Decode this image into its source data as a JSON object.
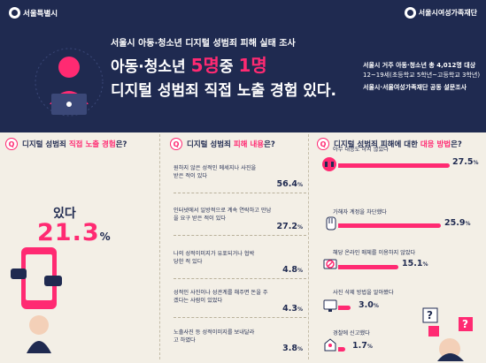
{
  "header": {
    "org_left": "서울특별시",
    "org_right": "서울시여성가족재단",
    "subtitle": "서울시 아동·청소년 디지털 성범죄 피해 실태 조사",
    "headline_pre": "아동·청소년 ",
    "headline_num1": "5명",
    "headline_mid": "중 ",
    "headline_num2": "1명",
    "headline_line2": "디지털 성범죄 직접 노출 경험 있다.",
    "info_line1": "서울시 거주 아동·청소년 총 4,012명 대상",
    "info_line2": "12~19세(초등학교 5학년~고등학교 3학년)",
    "info_line3": "서울시·서울여성가족재단 공동 설문조사"
  },
  "q1": {
    "qmark": "Q",
    "title_pre": "디지털 성범죄 ",
    "title_hl": "직접 노출 경험",
    "title_post": "은?",
    "label": "있다",
    "value": "21.3",
    "unit": "%"
  },
  "q2": {
    "qmark": "Q",
    "title_pre": "디지털 성범죄 ",
    "title_hl": "피해 내용",
    "title_post": "은?",
    "items": [
      {
        "text": "원하지 않은 성적인 메세지나 사진을 받은 적이 있다",
        "value": "56.4",
        "unit": "%"
      },
      {
        "text": "인터넷에서 일방적으로 계속 연락하고 만남을 요구 받은 적이 있다",
        "value": "27.2",
        "unit": "%"
      },
      {
        "text": "나의 성적이미지가 유포되거나 협박당한 적 있다",
        "value": "4.8",
        "unit": "%"
      },
      {
        "text": "성적인 사진이나 성관계를 해주면 돈을 주겠다는 사람이 있었다",
        "value": "4.3",
        "unit": "%"
      },
      {
        "text": "노출사진 등 성적이미지를 보내달라고 하였다",
        "value": "3.8",
        "unit": "%"
      }
    ]
  },
  "q3": {
    "qmark": "Q",
    "title_pre": "디지털 성범죄 피해에 대한 ",
    "title_hl": "대응 방법",
    "title_post": "은?",
    "items": [
      {
        "text": "아무 대응도 하지 않았다",
        "value": "27.5",
        "unit": "%",
        "icon": "frustrated-face-icon"
      },
      {
        "text": "가해자 계정을 차단했다",
        "value": "25.9",
        "unit": "%",
        "icon": "stop-hand-icon"
      },
      {
        "text": "해당 온라인 매체를 이용하지 않았다",
        "value": "15.1",
        "unit": "%",
        "icon": "prohibited-icon"
      },
      {
        "text": "사진 삭제 방법을 알아봤다",
        "value": "3.0",
        "unit": "%",
        "icon": "monitor-icon"
      },
      {
        "text": "경찰에 신고했다",
        "value": "1.7",
        "unit": "%",
        "icon": "police-icon"
      }
    ]
  },
  "colors": {
    "navy": "#1f2a50",
    "pink": "#ff2a72",
    "bg": "#f3efe6"
  }
}
